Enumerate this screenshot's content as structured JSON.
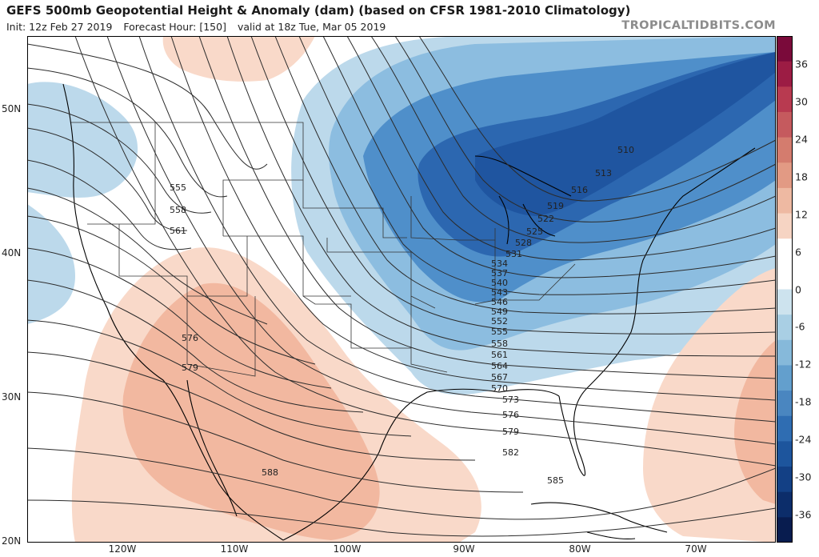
{
  "header": {
    "title": "GEFS 500mb Geopotential Height & Anomaly (dam) (based on CFSR 1981-2010 Climatology)",
    "init": "Init: 12z Feb 27 2019",
    "forecast_hour": "Forecast Hour: [150]",
    "valid": "valid at 18z Tue, Mar 05 2019",
    "brand": "TROPICALTIDBITS.COM"
  },
  "axes": {
    "lat_labels": [
      {
        "text": "50N",
        "value": 50
      },
      {
        "text": "40N",
        "value": 40
      },
      {
        "text": "30N",
        "value": 30
      },
      {
        "text": "20N",
        "value": 20
      }
    ],
    "lon_labels": [
      {
        "text": "120W",
        "value": -120
      },
      {
        "text": "110W",
        "value": -110
      },
      {
        "text": "100W",
        "value": -100
      },
      {
        "text": "90W",
        "value": -90
      },
      {
        "text": "80W",
        "value": -80
      },
      {
        "text": "70W",
        "value": -70
      }
    ]
  },
  "colorbar": {
    "ticks": [
      "36",
      "30",
      "24",
      "18",
      "12",
      "6",
      "0",
      "-6",
      "-12",
      "-18",
      "-24",
      "-30",
      "-36"
    ],
    "colors": [
      "#7a0a3a",
      "#9c1c44",
      "#b83a50",
      "#c55a5e",
      "#d47c6e",
      "#e29a84",
      "#eeb9a2",
      "#f6d4c3",
      "#ffffff",
      "#ffffff",
      "#cde3ee",
      "#a9cfe4",
      "#86b9da",
      "#639fcd",
      "#4a86c0",
      "#2f6db2",
      "#1d559d",
      "#134085",
      "#0c2d6a",
      "#081c4f"
    ]
  },
  "map": {
    "colors": {
      "positive_light": "#f9d9c9",
      "positive_mid": "#f2b8a0",
      "negative_light": "#bcd9eb",
      "negative_mid": "#8cbde0",
      "negative_deep": "#4f8fca",
      "negative_core": "#2c67b0",
      "negative_darkest": "#1f55a0",
      "contour": "#2b2b2b",
      "coast": "#000000"
    },
    "contour_labels": [
      "510",
      "513",
      "516",
      "519",
      "522",
      "525",
      "528",
      "531",
      "534",
      "537",
      "540",
      "543",
      "546",
      "549",
      "552",
      "555",
      "558",
      "561",
      "564",
      "567",
      "570",
      "573",
      "576",
      "579",
      "582",
      "585",
      "555",
      "558",
      "561",
      "576",
      "579",
      "588"
    ]
  }
}
